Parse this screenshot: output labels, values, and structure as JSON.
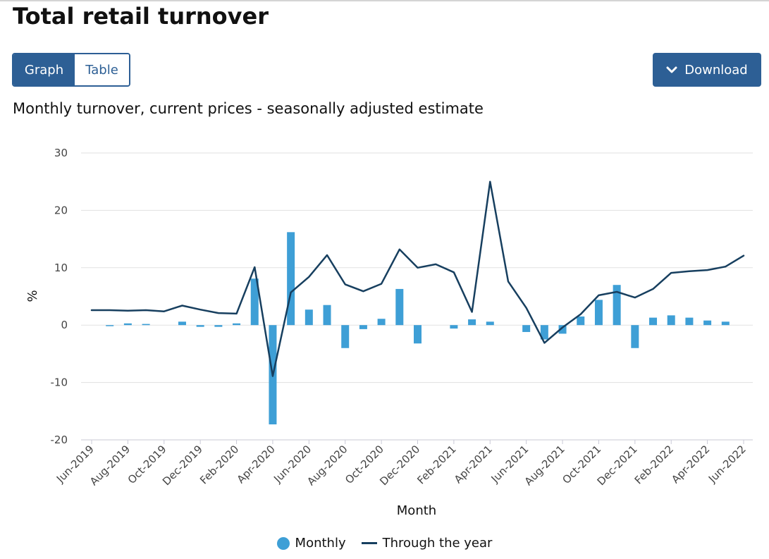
{
  "header": {
    "title": "Total retail turnover"
  },
  "view_toggle": {
    "graph_label": "Graph",
    "table_label": "Table"
  },
  "download": {
    "label": "Download",
    "icon": "chevron-down-icon"
  },
  "colors": {
    "accent": "#2d5f95",
    "bar": "#3e9fd6",
    "line": "#173f5f",
    "grid": "#e1e1e1"
  },
  "chart_data": {
    "type": "bar+line",
    "title": "Monthly turnover, current prices - seasonally adjusted estimate",
    "xlabel": "Month",
    "ylabel": "%",
    "ylim": [
      -20,
      30
    ],
    "yticks": [
      30,
      20,
      10,
      0,
      -10,
      -20
    ],
    "grid": true,
    "legend_position": "bottom",
    "categories": [
      "Jun-2019",
      "Jul-2019",
      "Aug-2019",
      "Sep-2019",
      "Oct-2019",
      "Nov-2019",
      "Dec-2019",
      "Jan-2020",
      "Feb-2020",
      "Mar-2020",
      "Apr-2020",
      "May-2020",
      "Jun-2020",
      "Jul-2020",
      "Aug-2020",
      "Sep-2020",
      "Oct-2020",
      "Nov-2020",
      "Dec-2020",
      "Jan-2021",
      "Feb-2021",
      "Mar-2021",
      "Apr-2021",
      "May-2021",
      "Jun-2021",
      "Jul-2021",
      "Aug-2021",
      "Sep-2021",
      "Oct-2021",
      "Nov-2021",
      "Dec-2021",
      "Jan-2022",
      "Feb-2022",
      "Mar-2022",
      "Apr-2022",
      "May-2022",
      "Jun-2022"
    ],
    "tick_labels": [
      "Jun-2019",
      "Aug-2019",
      "Oct-2019",
      "Dec-2019",
      "Feb-2020",
      "Apr-2020",
      "Jun-2020",
      "Aug-2020",
      "Oct-2020",
      "Dec-2020",
      "Feb-2021",
      "Apr-2021",
      "Jun-2021",
      "Aug-2021",
      "Oct-2021",
      "Dec-2021",
      "Feb-2022",
      "Apr-2022",
      "Jun-2022"
    ],
    "series": [
      {
        "name": "Monthly",
        "type": "bar",
        "values": [
          0.0,
          -0.1,
          0.3,
          0.2,
          0.0,
          0.6,
          -0.3,
          -0.3,
          0.3,
          8.1,
          -17.3,
          16.2,
          2.7,
          3.5,
          -4.0,
          -0.7,
          1.1,
          6.3,
          -3.2,
          0.0,
          -0.6,
          1.0,
          0.6,
          0.0,
          -1.2,
          -2.5,
          -1.5,
          1.5,
          4.4,
          7.0,
          -4.0,
          1.3,
          1.7,
          1.3,
          0.8,
          0.6,
          0.0
        ]
      },
      {
        "name": "Through the year",
        "type": "line",
        "values": [
          2.6,
          2.6,
          2.5,
          2.6,
          2.4,
          3.4,
          2.7,
          2.1,
          2.0,
          10.1,
          -8.9,
          5.7,
          8.4,
          12.2,
          7.1,
          5.9,
          7.2,
          13.2,
          10.0,
          10.6,
          9.2,
          2.3,
          25.0,
          7.6,
          3.0,
          -3.1,
          -0.4,
          1.9,
          5.2,
          5.8,
          4.8,
          6.3,
          9.1,
          9.4,
          9.6,
          10.2,
          12.1
        ]
      }
    ]
  }
}
